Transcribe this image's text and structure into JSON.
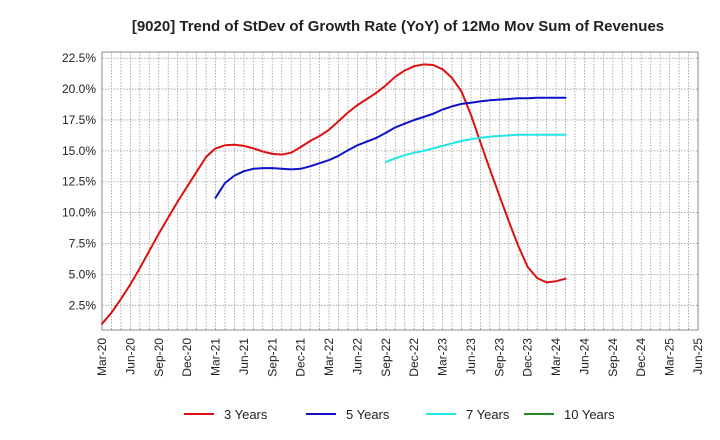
{
  "chart_data": {
    "type": "line",
    "title": "[9020]  Trend of StDev of Growth Rate (YoY) of 12Mo Mov Sum of Revenues",
    "xlabel": "",
    "ylabel": "",
    "ylim": [
      0.5,
      23.0
    ],
    "y_ticks": [
      2.5,
      5.0,
      7.5,
      10.0,
      12.5,
      15.0,
      17.5,
      20.0,
      22.5
    ],
    "y_tick_labels": [
      "2.5%",
      "5.0%",
      "7.5%",
      "10.0%",
      "12.5%",
      "15.0%",
      "17.5%",
      "20.0%",
      "22.5%"
    ],
    "x_tick_labels": [
      "Mar-20",
      "Jun-20",
      "Sep-20",
      "Dec-20",
      "Mar-21",
      "Jun-21",
      "Sep-21",
      "Dec-21",
      "Mar-22",
      "Jun-22",
      "Sep-22",
      "Dec-22",
      "Mar-23",
      "Jun-23",
      "Sep-23",
      "Dec-23",
      "Mar-24",
      "Jun-24",
      "Sep-24",
      "Dec-24",
      "Mar-25",
      "Jun-25"
    ],
    "grid": true,
    "legend_position": "bottom",
    "series": [
      {
        "name": "3 Years",
        "color": "#dd1111",
        "points": [
          [
            0,
            1.0
          ],
          [
            1,
            1.9
          ],
          [
            2,
            3.0
          ],
          [
            3,
            4.2
          ],
          [
            4,
            5.5
          ],
          [
            5,
            6.9
          ],
          [
            6,
            8.3
          ],
          [
            7,
            9.6
          ],
          [
            8,
            10.9
          ],
          [
            9,
            12.1
          ],
          [
            10,
            13.3
          ],
          [
            11,
            14.5
          ],
          [
            12,
            15.2
          ],
          [
            13,
            15.45
          ],
          [
            14,
            15.5
          ],
          [
            15,
            15.4
          ],
          [
            16,
            15.2
          ],
          [
            17,
            14.95
          ],
          [
            18,
            14.75
          ],
          [
            19,
            14.7
          ],
          [
            20,
            14.85
          ],
          [
            21,
            15.3
          ],
          [
            22,
            15.8
          ],
          [
            23,
            16.2
          ],
          [
            24,
            16.7
          ],
          [
            25,
            17.4
          ],
          [
            26,
            18.1
          ],
          [
            27,
            18.7
          ],
          [
            28,
            19.2
          ],
          [
            29,
            19.7
          ],
          [
            30,
            20.3
          ],
          [
            31,
            21.0
          ],
          [
            32,
            21.5
          ],
          [
            33,
            21.85
          ],
          [
            34,
            22.0
          ],
          [
            35,
            21.95
          ],
          [
            36,
            21.6
          ],
          [
            37,
            20.9
          ],
          [
            38,
            19.8
          ],
          [
            39,
            17.9
          ],
          [
            40,
            15.7
          ],
          [
            41,
            13.5
          ],
          [
            42,
            11.4
          ],
          [
            43,
            9.3
          ],
          [
            44,
            7.3
          ],
          [
            45,
            5.6
          ],
          [
            46,
            4.7
          ],
          [
            47,
            4.35
          ],
          [
            48,
            4.45
          ],
          [
            49,
            4.65
          ]
        ]
      },
      {
        "name": "5 Years",
        "color": "#1111cc",
        "points": [
          [
            12,
            11.2
          ],
          [
            13,
            12.4
          ],
          [
            14,
            13.0
          ],
          [
            15,
            13.35
          ],
          [
            16,
            13.55
          ],
          [
            17,
            13.6
          ],
          [
            18,
            13.6
          ],
          [
            19,
            13.55
          ],
          [
            20,
            13.5
          ],
          [
            21,
            13.55
          ],
          [
            22,
            13.75
          ],
          [
            23,
            14.0
          ],
          [
            24,
            14.25
          ],
          [
            25,
            14.6
          ],
          [
            26,
            15.05
          ],
          [
            27,
            15.45
          ],
          [
            28,
            15.75
          ],
          [
            29,
            16.05
          ],
          [
            30,
            16.45
          ],
          [
            31,
            16.9
          ],
          [
            32,
            17.2
          ],
          [
            33,
            17.5
          ],
          [
            34,
            17.75
          ],
          [
            35,
            18.0
          ],
          [
            36,
            18.35
          ],
          [
            37,
            18.6
          ],
          [
            38,
            18.8
          ],
          [
            39,
            18.9
          ],
          [
            40,
            19.0
          ],
          [
            41,
            19.1
          ],
          [
            42,
            19.15
          ],
          [
            43,
            19.2
          ],
          [
            44,
            19.25
          ],
          [
            45,
            19.25
          ],
          [
            46,
            19.3
          ],
          [
            47,
            19.3
          ],
          [
            48,
            19.3
          ],
          [
            49,
            19.3
          ]
        ]
      },
      {
        "name": "7 Years",
        "color": "#22e5e5",
        "points": [
          [
            30,
            14.1
          ],
          [
            31,
            14.4
          ],
          [
            32,
            14.65
          ],
          [
            33,
            14.85
          ],
          [
            34,
            15.0
          ],
          [
            35,
            15.2
          ],
          [
            36,
            15.4
          ],
          [
            37,
            15.6
          ],
          [
            38,
            15.8
          ],
          [
            39,
            15.95
          ],
          [
            40,
            16.05
          ],
          [
            41,
            16.15
          ],
          [
            42,
            16.2
          ],
          [
            43,
            16.25
          ],
          [
            44,
            16.3
          ],
          [
            45,
            16.3
          ],
          [
            46,
            16.3
          ],
          [
            47,
            16.3
          ],
          [
            48,
            16.3
          ],
          [
            49,
            16.3
          ]
        ]
      },
      {
        "name": "10 Years",
        "color": "#228822",
        "points": []
      }
    ]
  }
}
